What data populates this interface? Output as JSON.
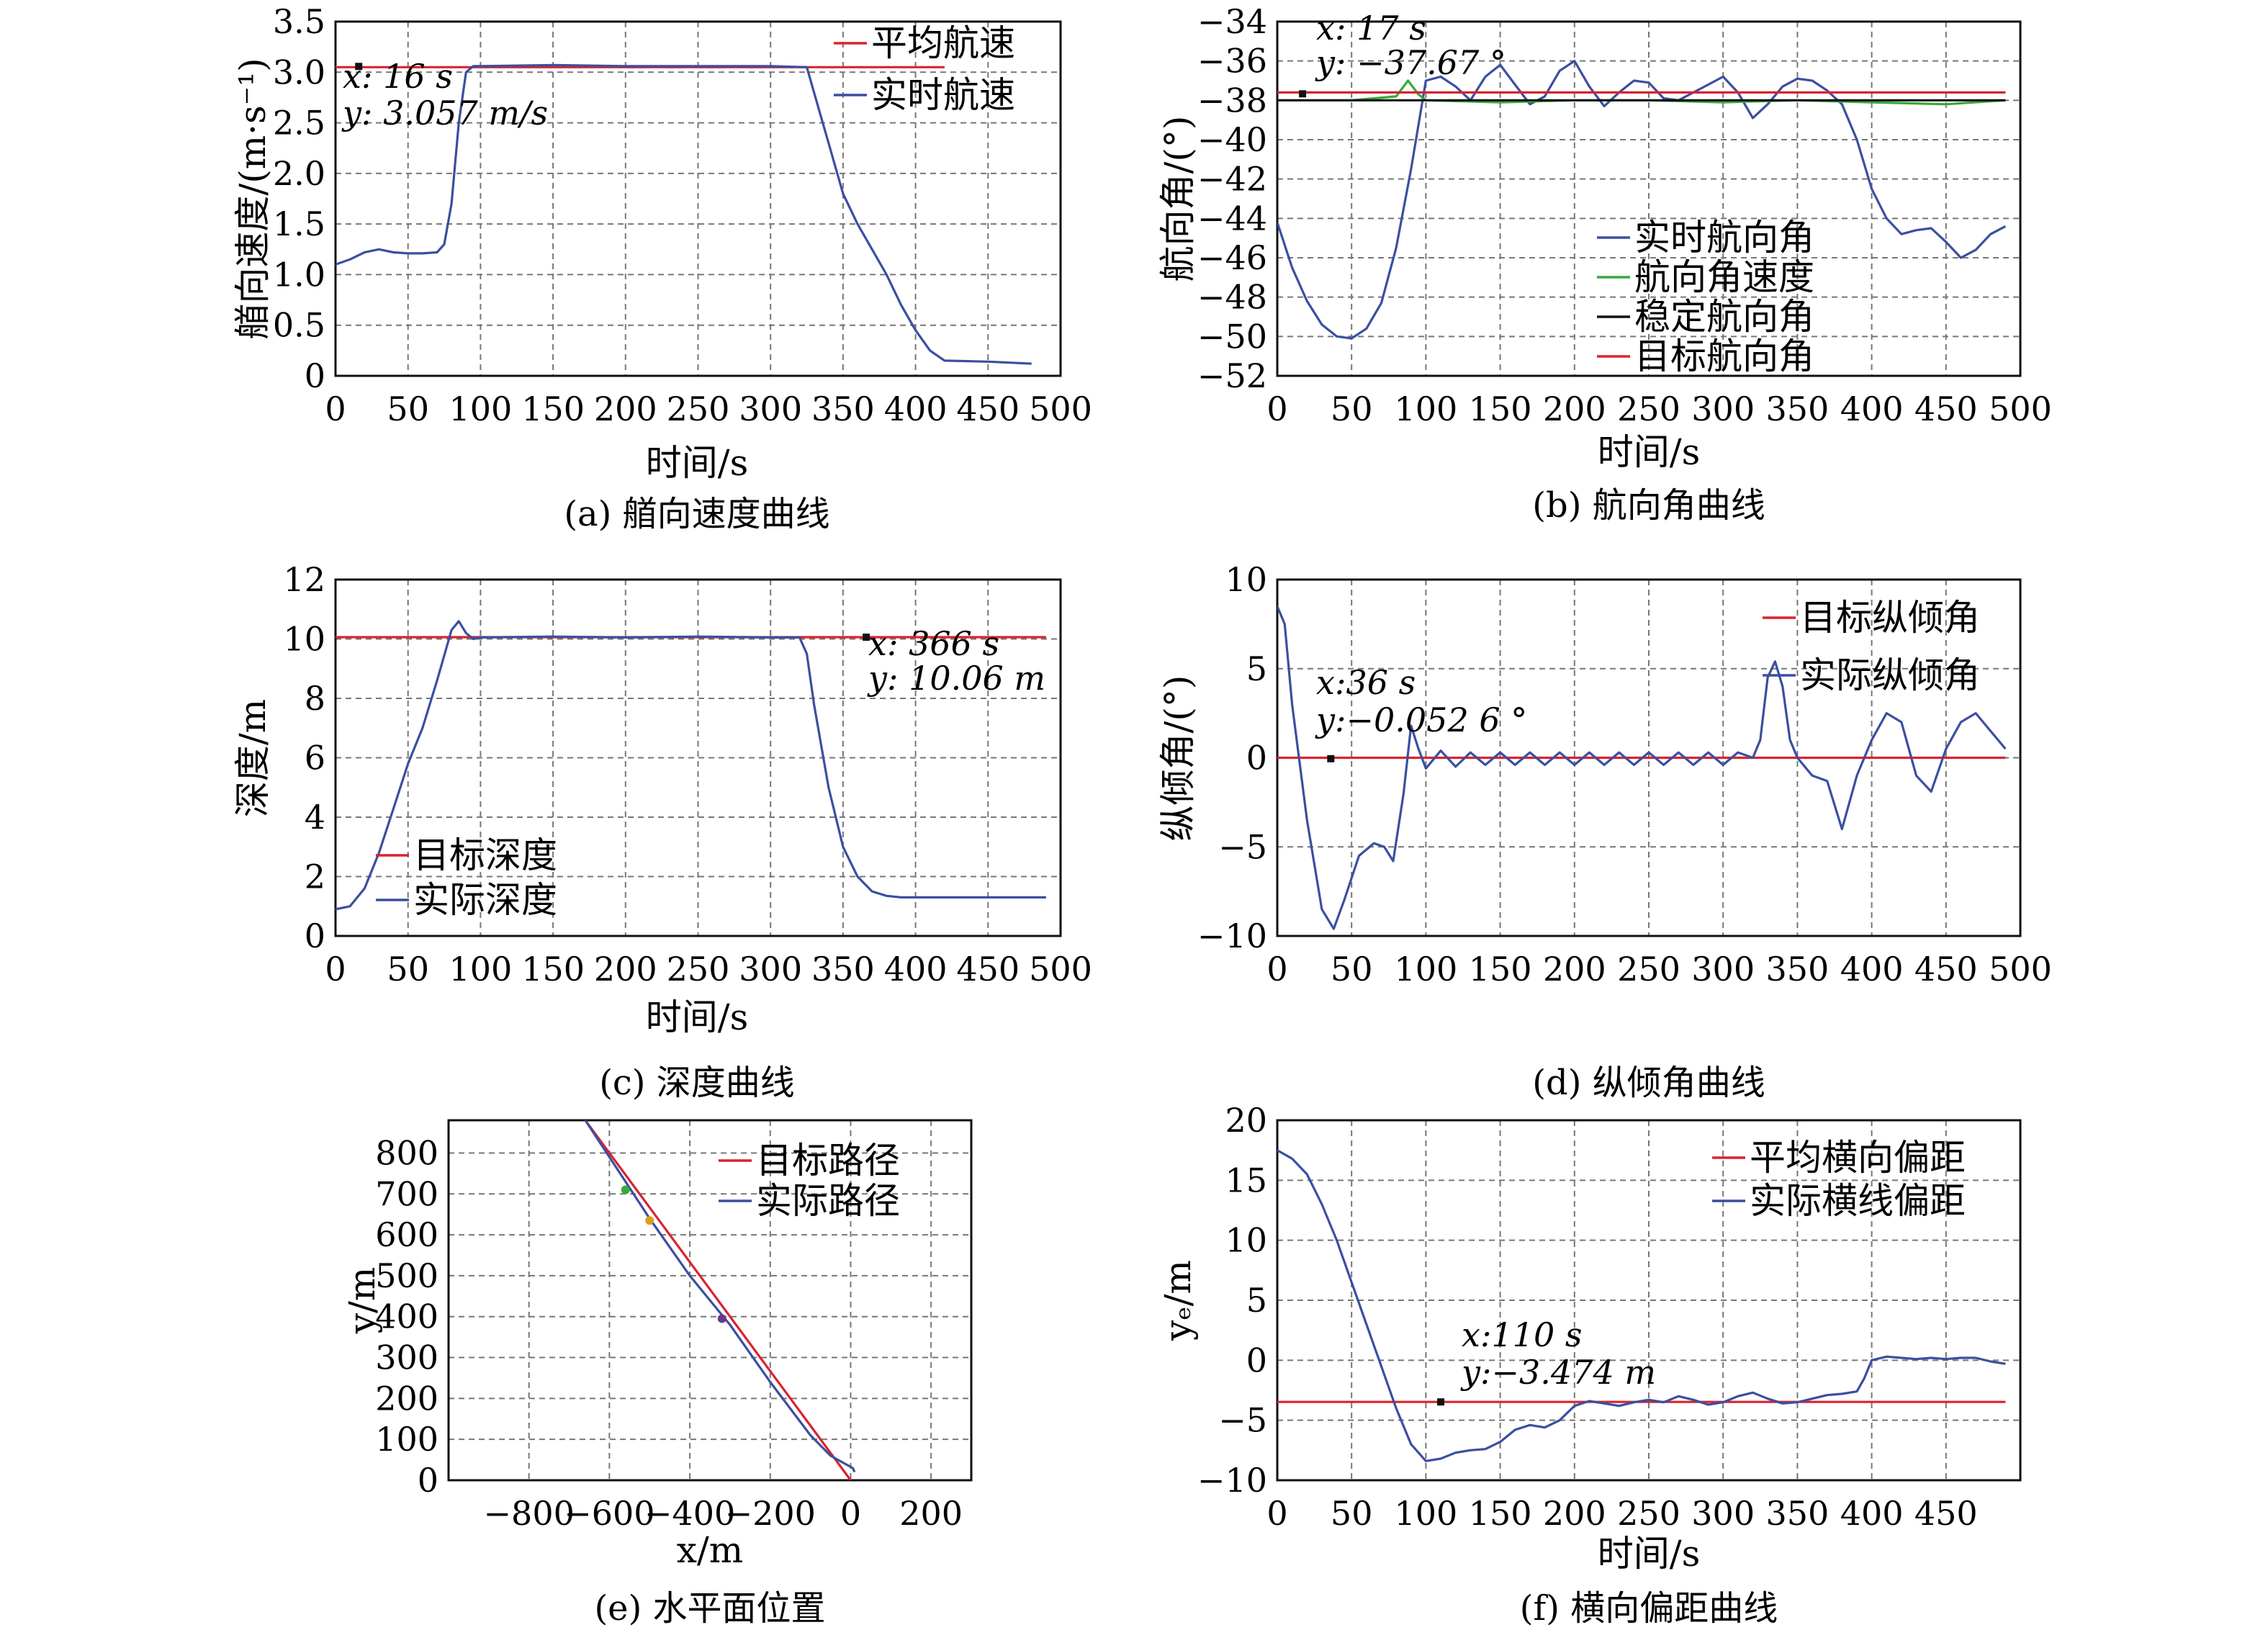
{
  "figure": {
    "panels": [
      {
        "caption": "(a) 艏向速度曲线",
        "xlabel": "时间/s",
        "ylabel": "艏向速度/(m·s⁻¹)",
        "annotation": [
          "x: 16 s",
          "y: 3.057 m/s"
        ],
        "legend": [
          "平均航速",
          "实时航速"
        ]
      },
      {
        "caption": "(b) 航向角曲线",
        "xlabel": "时间/s",
        "ylabel": "航向角/(°)",
        "annotation": [
          "x: 17 s",
          "y: −37.67 °"
        ],
        "legend": [
          "实时航向角",
          "航向角速度",
          "稳定航向角",
          "目标航向角"
        ]
      },
      {
        "caption": "(c) 深度曲线",
        "xlabel": "时间/s",
        "ylabel": "深度/m",
        "annotation": [
          "x: 366 s",
          "y: 10.06 m"
        ],
        "legend": [
          "目标深度",
          "实际深度"
        ]
      },
      {
        "caption": "(d) 纵倾角曲线",
        "xlabel": "",
        "ylabel": "纵倾角/(°)",
        "annotation": [
          "x:36 s",
          "y:−0.052 6 °"
        ],
        "legend": [
          "目标纵倾角",
          "实际纵倾角"
        ]
      },
      {
        "caption": "(e) 水平面位置",
        "xlabel": "x/m",
        "ylabel": "y/m",
        "annotation": [],
        "legend": [
          "目标路径",
          "实际路径"
        ]
      },
      {
        "caption": "(f) 横向偏距曲线",
        "xlabel": "时间/s",
        "ylabel": "yₑ/m",
        "annotation": [
          "x:110 s",
          "y:−3.474 m"
        ],
        "legend": [
          "平均横向偏距",
          "实际横线偏距"
        ]
      }
    ]
  },
  "colors": {
    "blue": "#3b4fa0",
    "red": "#d9242f",
    "green": "#3aa83a",
    "black": "#111111",
    "grid": "#777777"
  },
  "chart_data": [
    {
      "type": "line",
      "title": "(a) 艏向速度曲线",
      "xlabel": "时间/s",
      "ylabel": "艏向速度/(m·s⁻¹)",
      "xlim": [
        0,
        500
      ],
      "ylim": [
        0,
        3.5
      ],
      "xticks": [
        0,
        50,
        100,
        150,
        200,
        250,
        300,
        350,
        400,
        450,
        500
      ],
      "yticks": [
        0,
        0.5,
        1.0,
        1.5,
        2.0,
        2.5,
        3.0,
        3.5
      ],
      "ytick_labels": [
        "0",
        "0.5",
        "1.0",
        "1.5",
        "2.0",
        "2.5",
        "3.0",
        "3.5"
      ],
      "grid": true,
      "legend_position": "top-right",
      "series": [
        {
          "name": "平均航速",
          "color": "#d9242f",
          "x": [
            0,
            420
          ],
          "y": [
            3.05,
            3.05
          ]
        },
        {
          "name": "实时航速",
          "color": "#3b4fa0",
          "x": [
            0,
            10,
            20,
            30,
            40,
            50,
            60,
            70,
            75,
            80,
            85,
            90,
            95,
            100,
            150,
            200,
            250,
            300,
            325,
            330,
            340,
            350,
            360,
            370,
            380,
            390,
            400,
            410,
            420,
            450,
            480
          ],
          "y": [
            1.1,
            1.15,
            1.22,
            1.25,
            1.22,
            1.21,
            1.21,
            1.22,
            1.3,
            1.7,
            2.5,
            3.0,
            3.06,
            3.06,
            3.07,
            3.06,
            3.06,
            3.06,
            3.05,
            2.8,
            2.3,
            1.8,
            1.5,
            1.25,
            1.0,
            0.7,
            0.45,
            0.25,
            0.15,
            0.14,
            0.12
          ]
        }
      ],
      "marker": {
        "x": 16,
        "y": 3.057
      }
    },
    {
      "type": "line",
      "title": "(b) 航向角曲线",
      "xlabel": "时间/s",
      "ylabel": "航向角/(°)",
      "xlim": [
        0,
        500
      ],
      "ylim": [
        -52,
        -34
      ],
      "xticks": [
        0,
        50,
        100,
        150,
        200,
        250,
        300,
        350,
        400,
        450,
        500
      ],
      "yticks": [
        -52,
        -50,
        -48,
        -46,
        -44,
        -42,
        -40,
        -38,
        -36,
        -34
      ],
      "ytick_labels": [
        "−52",
        "−50",
        "−48",
        "−46",
        "−44",
        "−42",
        "−40",
        "−38",
        "−36",
        "−34"
      ],
      "grid": true,
      "legend_position": "bottom-right",
      "series": [
        {
          "name": "实时航向角",
          "color": "#3b4fa0",
          "x": [
            0,
            10,
            20,
            30,
            40,
            50,
            60,
            70,
            80,
            90,
            100,
            110,
            120,
            130,
            140,
            150,
            160,
            170,
            180,
            190,
            200,
            210,
            220,
            230,
            240,
            250,
            260,
            270,
            280,
            290,
            300,
            310,
            320,
            330,
            340,
            350,
            360,
            370,
            380,
            390,
            400,
            410,
            420,
            430,
            440,
            450,
            460,
            470,
            480,
            490
          ],
          "y": [
            -44.2,
            -46.5,
            -48.2,
            -49.4,
            -50.0,
            -50.1,
            -49.6,
            -48.3,
            -45.5,
            -41.5,
            -37.0,
            -36.8,
            -37.3,
            -38.0,
            -36.8,
            -36.2,
            -37.2,
            -38.2,
            -37.8,
            -36.5,
            -36.0,
            -37.3,
            -38.3,
            -37.6,
            -37.0,
            -37.1,
            -37.9,
            -38.0,
            -37.6,
            -37.2,
            -36.8,
            -37.6,
            -38.9,
            -38.2,
            -37.3,
            -36.9,
            -37.0,
            -37.5,
            -38.2,
            -40.0,
            -42.5,
            -44.0,
            -44.8,
            -44.6,
            -44.5,
            -45.2,
            -46.0,
            -45.6,
            -44.8,
            -44.4
          ]
        },
        {
          "name": "航向角速度",
          "color": "#3aa83a",
          "x": [
            0,
            50,
            80,
            88,
            95,
            100,
            150,
            200,
            250,
            300,
            350,
            400,
            450,
            490
          ],
          "y": [
            -38.0,
            -38.0,
            -37.8,
            -37.0,
            -37.7,
            -38.0,
            -38.1,
            -38.0,
            -38.0,
            -38.1,
            -38.0,
            -38.1,
            -38.2,
            -38.0
          ]
        },
        {
          "name": "稳定航向角",
          "color": "#111111",
          "x": [
            0,
            490
          ],
          "y": [
            -38.0,
            -38.0
          ]
        },
        {
          "name": "目标航向角",
          "color": "#d9242f",
          "x": [
            0,
            490
          ],
          "y": [
            -37.6,
            -37.6
          ]
        }
      ],
      "marker": {
        "x": 17,
        "y": -37.67
      }
    },
    {
      "type": "line",
      "title": "(c) 深度曲线",
      "xlabel": "时间/s",
      "ylabel": "深度/m",
      "xlim": [
        0,
        500
      ],
      "ylim": [
        0,
        12
      ],
      "xticks": [
        0,
        50,
        100,
        150,
        200,
        250,
        300,
        350,
        400,
        450,
        500
      ],
      "yticks": [
        0,
        2,
        4,
        6,
        8,
        10,
        12
      ],
      "grid": true,
      "legend_position": "bottom-left",
      "series": [
        {
          "name": "目标深度",
          "color": "#d9242f",
          "x": [
            0,
            490
          ],
          "y": [
            10.06,
            10.06
          ]
        },
        {
          "name": "实际深度",
          "color": "#3b4fa0",
          "x": [
            0,
            10,
            20,
            30,
            40,
            50,
            60,
            70,
            80,
            85,
            90,
            95,
            100,
            150,
            200,
            250,
            300,
            320,
            325,
            330,
            340,
            350,
            360,
            370,
            380,
            390,
            400,
            450,
            490
          ],
          "y": [
            0.9,
            1.0,
            1.6,
            2.8,
            4.3,
            5.8,
            7.0,
            8.6,
            10.3,
            10.6,
            10.2,
            10.0,
            10.05,
            10.08,
            10.05,
            10.08,
            10.05,
            10.05,
            9.5,
            7.8,
            5.0,
            3.0,
            2.0,
            1.5,
            1.35,
            1.3,
            1.3,
            1.3,
            1.3
          ]
        }
      ],
      "marker": {
        "x": 366,
        "y": 10.06
      }
    },
    {
      "type": "line",
      "title": "(d) 纵倾角曲线",
      "xlabel": "",
      "ylabel": "纵倾角/(°)",
      "xlim": [
        0,
        500
      ],
      "ylim": [
        -10,
        10
      ],
      "xticks": [
        0,
        50,
        100,
        150,
        200,
        250,
        300,
        350,
        400,
        450,
        500
      ],
      "yticks": [
        -10,
        -5,
        0,
        5,
        10
      ],
      "ytick_labels": [
        "−10",
        "−5",
        "0",
        "5",
        "10"
      ],
      "grid": true,
      "legend_position": "top-right",
      "series": [
        {
          "name": "目标纵倾角",
          "color": "#d9242f",
          "x": [
            0,
            490
          ],
          "y": [
            0,
            0
          ]
        },
        {
          "name": "实际纵倾角",
          "color": "#3b4fa0",
          "x": [
            0,
            5,
            10,
            20,
            30,
            38,
            45,
            55,
            65,
            72,
            78,
            85,
            90,
            95,
            100,
            110,
            120,
            130,
            140,
            150,
            160,
            170,
            180,
            190,
            200,
            210,
            220,
            230,
            240,
            250,
            260,
            270,
            280,
            290,
            300,
            310,
            320,
            325,
            330,
            335,
            340,
            345,
            350,
            360,
            370,
            380,
            390,
            400,
            410,
            420,
            430,
            440,
            450,
            460,
            470,
            480,
            490
          ],
          "y": [
            8.5,
            7.5,
            3.0,
            -3.5,
            -8.5,
            -9.6,
            -8.0,
            -5.5,
            -4.8,
            -5.0,
            -5.8,
            -2.0,
            1.8,
            0.5,
            -0.6,
            0.4,
            -0.5,
            0.3,
            -0.4,
            0.3,
            -0.4,
            0.3,
            -0.4,
            0.3,
            -0.4,
            0.3,
            -0.4,
            0.3,
            -0.4,
            0.3,
            -0.4,
            0.3,
            -0.4,
            0.3,
            -0.4,
            0.3,
            0.0,
            1.0,
            4.5,
            5.4,
            4.0,
            1.0,
            0.0,
            -1.0,
            -1.3,
            -4.0,
            -1.0,
            1.0,
            2.5,
            2.0,
            -1.0,
            -1.9,
            0.5,
            2.0,
            2.5,
            1.5,
            0.5
          ]
        }
      ],
      "marker": {
        "x": 36,
        "y": -0.0526
      }
    },
    {
      "type": "line",
      "title": "(e) 水平面位置",
      "xlabel": "x/m",
      "ylabel": "y/m",
      "xlim": [
        -1000,
        300
      ],
      "ylim": [
        0,
        880
      ],
      "xticks": [
        -800,
        -600,
        -400,
        -200,
        0,
        200
      ],
      "xtick_labels": [
        "−800",
        "−600",
        "−400",
        "−200",
        "0",
        "200"
      ],
      "yticks": [
        0,
        100,
        200,
        300,
        400,
        500,
        600,
        700,
        800
      ],
      "grid": true,
      "legend_position": "top-right",
      "series": [
        {
          "name": "目标路径",
          "color": "#d9242f",
          "x": [
            -660,
            0
          ],
          "y": [
            880,
            0
          ]
        },
        {
          "name": "实际路径",
          "color": "#3b4fa0",
          "x": [
            -660,
            -600,
            -500,
            -400,
            -300,
            -200,
            -100,
            -50,
            5,
            10
          ],
          "y": [
            880,
            790,
            640,
            500,
            380,
            240,
            110,
            60,
            30,
            20
          ]
        }
      ],
      "points": [
        {
          "x": -560,
          "y": 710,
          "color": "#3aa83a"
        },
        {
          "x": -500,
          "y": 635,
          "color": "#d9a020"
        },
        {
          "x": -320,
          "y": 395,
          "color": "#6a3a8a"
        }
      ]
    },
    {
      "type": "line",
      "title": "(f) 横向偏距曲线",
      "xlabel": "时间/s",
      "ylabel": "yₑ/m",
      "xlim": [
        0,
        500
      ],
      "ylim": [
        -10,
        20
      ],
      "xticks": [
        0,
        50,
        100,
        150,
        200,
        250,
        300,
        350,
        400,
        450
      ],
      "yticks": [
        -10,
        -5,
        0,
        5,
        10,
        15,
        20
      ],
      "ytick_labels": [
        "−10",
        "−5",
        "0",
        "5",
        "10",
        "15",
        "20"
      ],
      "grid": true,
      "legend_position": "top-right",
      "series": [
        {
          "name": "平均横向偏距",
          "color": "#d9242f",
          "x": [
            0,
            490
          ],
          "y": [
            -3.474,
            -3.474
          ]
        },
        {
          "name": "实际横线偏距",
          "color": "#3b4fa0",
          "x": [
            0,
            10,
            20,
            30,
            40,
            50,
            60,
            70,
            80,
            90,
            100,
            110,
            120,
            130,
            140,
            150,
            160,
            170,
            180,
            190,
            200,
            210,
            220,
            230,
            240,
            250,
            260,
            270,
            280,
            290,
            300,
            310,
            320,
            330,
            340,
            350,
            360,
            370,
            380,
            390,
            395,
            400,
            410,
            420,
            430,
            440,
            450,
            460,
            470,
            480,
            490
          ],
          "y": [
            17.5,
            16.8,
            15.5,
            13.0,
            10.0,
            6.5,
            3.0,
            -0.5,
            -4.0,
            -7.0,
            -8.4,
            -8.2,
            -7.7,
            -7.5,
            -7.4,
            -6.8,
            -5.8,
            -5.4,
            -5.6,
            -5.0,
            -3.8,
            -3.4,
            -3.6,
            -3.8,
            -3.5,
            -3.3,
            -3.5,
            -3.0,
            -3.3,
            -3.7,
            -3.5,
            -3.0,
            -2.7,
            -3.2,
            -3.6,
            -3.5,
            -3.2,
            -2.9,
            -2.8,
            -2.6,
            -1.5,
            0.0,
            0.3,
            0.2,
            0.1,
            0.2,
            0.1,
            0.2,
            0.2,
            -0.1,
            -0.3
          ]
        }
      ],
      "marker": {
        "x": 110,
        "y": -3.474
      }
    }
  ]
}
